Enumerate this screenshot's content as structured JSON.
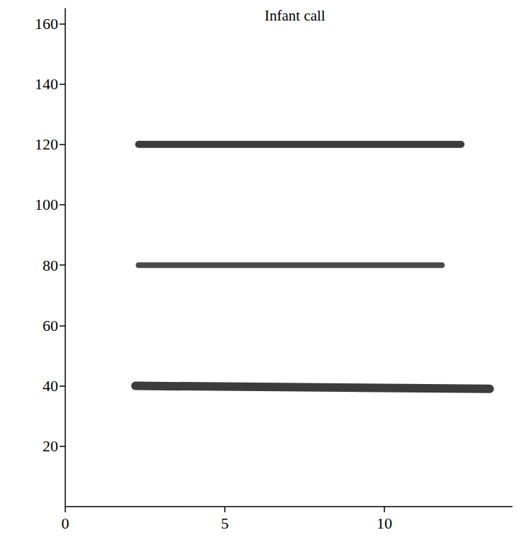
{
  "chart_data": {
    "type": "line",
    "title": "Infant call",
    "series": [
      {
        "color": "#1a1a1a",
        "x": [
          2.2,
          13.3
        ],
        "values": [
          40,
          39
        ]
      },
      {
        "color": "#2a2a2a",
        "x": [
          2.3,
          11.8
        ],
        "values": [
          80,
          80
        ]
      },
      {
        "color": "#1a1a1a",
        "x": [
          2.3,
          12.4
        ],
        "values": [
          120,
          120
        ]
      }
    ],
    "xlim": [
      0,
      14
    ],
    "xticks": [
      0,
      5,
      10
    ],
    "ylim": [
      0,
      165
    ],
    "yticks": [
      20,
      40,
      60,
      80,
      100,
      120,
      140,
      160
    ],
    "grid": false
  }
}
